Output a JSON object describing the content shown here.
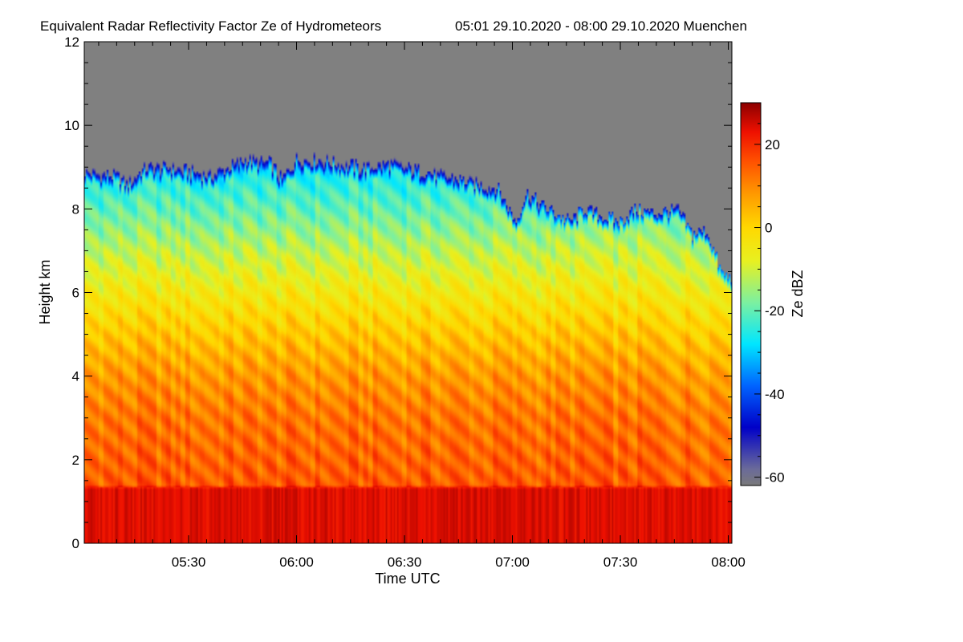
{
  "chart_data": {
    "type": "heatmap",
    "title": "Equivalent Radar Reflectivity Factor Ze of Hydrometeors",
    "subtitle": "05:01 29.10.2020 - 08:00 29.10.2020 Muenchen",
    "xlabel": "Time UTC",
    "ylabel": "Height km",
    "colorbar_label": "Ze dBZ",
    "x_range_minutes": [
      301,
      481
    ],
    "x_ticks": [
      {
        "value": 330,
        "label": "05:30"
      },
      {
        "value": 360,
        "label": "06:00"
      },
      {
        "value": 390,
        "label": "06:30"
      },
      {
        "value": 420,
        "label": "07:00"
      },
      {
        "value": 450,
        "label": "07:30"
      },
      {
        "value": 480,
        "label": "08:00"
      }
    ],
    "y_range_km": [
      0,
      12
    ],
    "y_ticks": [
      0,
      2,
      4,
      6,
      8,
      10,
      12
    ],
    "colorbar_range_dbz": [
      -62,
      30
    ],
    "colorbar_ticks": [
      -60,
      -40,
      -20,
      0,
      20
    ],
    "no_data_color": "#808080",
    "colormap": [
      {
        "dbz": -62,
        "color": "#7a7a7a"
      },
      {
        "dbz": -58,
        "color": "#6a6a9a"
      },
      {
        "dbz": -48,
        "color": "#0000c8"
      },
      {
        "dbz": -38,
        "color": "#0064ff"
      },
      {
        "dbz": -28,
        "color": "#00e6ff"
      },
      {
        "dbz": -18,
        "color": "#7cf0a0"
      },
      {
        "dbz": -8,
        "color": "#e8f020"
      },
      {
        "dbz": 0,
        "color": "#ffd800"
      },
      {
        "dbz": 8,
        "color": "#ff9a00"
      },
      {
        "dbz": 16,
        "color": "#ff5000"
      },
      {
        "dbz": 23,
        "color": "#ee1000"
      },
      {
        "dbz": 30,
        "color": "#8c0000"
      }
    ],
    "echo_top_km": {
      "minutes": [
        301,
        310,
        313,
        318,
        326,
        336,
        346,
        353,
        356,
        360,
        366,
        378,
        386,
        396,
        406,
        416,
        421,
        424,
        428,
        436,
        440,
        446,
        450,
        454,
        460,
        466,
        470,
        474,
        478,
        481
      ],
      "values": [
        8.9,
        8.8,
        8.6,
        9.0,
        9.0,
        8.8,
        9.2,
        9.1,
        8.7,
        9.2,
        9.2,
        9.0,
        9.1,
        8.9,
        8.7,
        8.5,
        7.7,
        8.4,
        8.1,
        7.7,
        8.0,
        7.8,
        7.7,
        8.0,
        7.9,
        8.0,
        7.4,
        7.5,
        6.5,
        6.3
      ]
    },
    "melting_layer_top_km": 1.35,
    "reflectivity_profile": {
      "height_km": [
        0,
        1.3,
        1.4,
        2,
        3,
        4,
        5,
        6,
        7,
        8,
        9
      ],
      "dbz": [
        24,
        24,
        15,
        14,
        12,
        8,
        2,
        -5,
        -12,
        -20,
        -27
      ]
    }
  }
}
